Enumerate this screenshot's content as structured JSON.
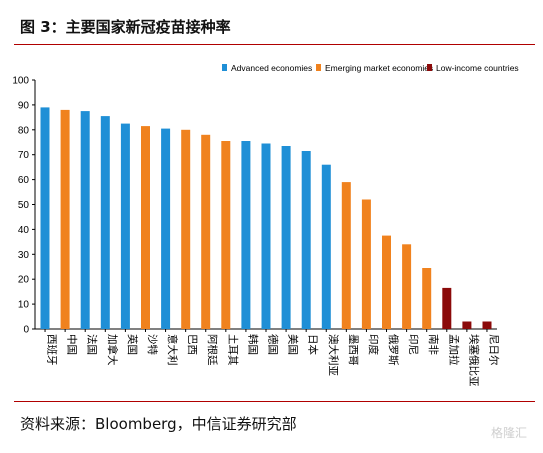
{
  "figure": {
    "title": "图 3：主要国家新冠疫苗接种率",
    "source": "资料来源：Bloomberg，中信证券研究部",
    "watermark": "格隆汇"
  },
  "colors": {
    "advanced": "#1f8fd6",
    "emerging": "#f0821e",
    "lowincome": "#8b0a0a",
    "rule": "#b00000"
  },
  "chart_data": {
    "type": "bar",
    "title": "",
    "xlabel": "",
    "ylabel": "",
    "ylim": [
      0,
      100
    ],
    "yticks": [
      0,
      10,
      20,
      30,
      40,
      50,
      60,
      70,
      80,
      90,
      100
    ],
    "grid": false,
    "legend_position": "top-right",
    "legend": [
      {
        "name": "Advanced economies",
        "group": "advanced"
      },
      {
        "name": "Emerging market economies",
        "group": "emerging"
      },
      {
        "name": "Low-income countries",
        "group": "lowincome"
      }
    ],
    "categories": [
      "西班牙",
      "中国",
      "法国",
      "加拿大",
      "英国",
      "沙特",
      "意大利",
      "巴西",
      "阿根廷",
      "土耳其",
      "韩国",
      "德国",
      "美国",
      "日本",
      "澳大利亚",
      "墨西哥",
      "印度",
      "俄罗斯",
      "印尼",
      "南非",
      "孟加拉",
      "埃塞俄比亚",
      "尼日尔"
    ],
    "values": [
      89,
      88,
      87.5,
      85.5,
      82.5,
      81.5,
      80.5,
      80,
      78,
      75.5,
      75.5,
      74.5,
      73.5,
      71.5,
      66,
      59,
      52,
      37.5,
      34,
      24.5,
      16.5,
      3,
      3
    ],
    "groups": [
      "advanced",
      "emerging",
      "advanced",
      "advanced",
      "advanced",
      "emerging",
      "advanced",
      "emerging",
      "emerging",
      "emerging",
      "advanced",
      "advanced",
      "advanced",
      "advanced",
      "advanced",
      "emerging",
      "emerging",
      "emerging",
      "emerging",
      "emerging",
      "lowincome",
      "lowincome",
      "lowincome"
    ]
  }
}
